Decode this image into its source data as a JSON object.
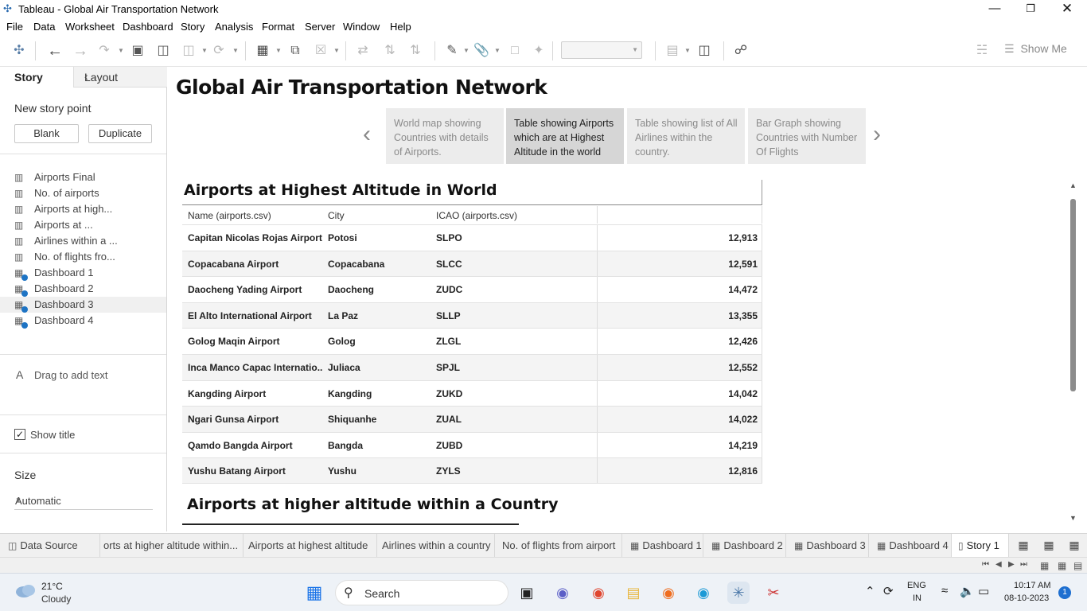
{
  "window": {
    "title": "Tableau - Global Air Transportation Network"
  },
  "menu": [
    "File",
    "Data",
    "Worksheet",
    "Dashboard",
    "Story",
    "Analysis",
    "Format",
    "Server",
    "Window",
    "Help"
  ],
  "toolbar": {
    "show_me": "Show Me"
  },
  "left_pane": {
    "tabs": {
      "story": "Story",
      "layout": "Layout"
    },
    "new_story_point": "New story point",
    "blank_button": "Blank",
    "duplicate_button": "Duplicate",
    "sheets": [
      {
        "label": "Airports Final",
        "type": "worksheet"
      },
      {
        "label": "No. of airports",
        "type": "worksheet"
      },
      {
        "label": "Airports at high...",
        "type": "worksheet"
      },
      {
        "label": "Airports at ...",
        "type": "worksheet"
      },
      {
        "label": "Airlines within a ...",
        "type": "worksheet"
      },
      {
        "label": "No. of flights fro...",
        "type": "worksheet"
      },
      {
        "label": "Dashboard 1",
        "type": "dashboard"
      },
      {
        "label": "Dashboard 2",
        "type": "dashboard"
      },
      {
        "label": "Dashboard 3",
        "type": "dashboard"
      },
      {
        "label": "Dashboard 4",
        "type": "dashboard"
      }
    ],
    "drag_to_add_text": "Drag to add text",
    "show_title": "Show title",
    "show_title_checked": true,
    "size_label": "Size",
    "size_value": "Automatic"
  },
  "story": {
    "title": "Global Air Transportation Network",
    "points": [
      "World map showing Countries with details of Airports.",
      "Table showing Airports which are at Highest Altitude in the world",
      "Table showing list of All Airlines within the country.",
      "Bar Graph showing Countries with Number Of Flights"
    ],
    "active_point": 1
  },
  "viz": {
    "title": "Airports at Highest Altitude in World",
    "columns": [
      "Name (airports.csv)",
      "City",
      "ICAO (airports.csv)"
    ],
    "rows": [
      {
        "name": "Capitan Nicolas Rojas Airport",
        "city": "Potosi",
        "icao": "SLPO",
        "altitude": "12,913"
      },
      {
        "name": "Copacabana Airport",
        "city": "Copacabana",
        "icao": "SLCC",
        "altitude": "12,591"
      },
      {
        "name": "Daocheng Yading Airport",
        "city": "Daocheng",
        "icao": "ZUDC",
        "altitude": "14,472"
      },
      {
        "name": "El Alto International Airport",
        "city": "La Paz",
        "icao": "SLLP",
        "altitude": "13,355"
      },
      {
        "name": "Golog Maqin Airport",
        "city": "Golog",
        "icao": "ZLGL",
        "altitude": "12,426"
      },
      {
        "name": "Inca Manco Capac Internatio..",
        "city": "Juliaca",
        "icao": "SPJL",
        "altitude": "12,552"
      },
      {
        "name": "Kangding Airport",
        "city": "Kangding",
        "icao": "ZUKD",
        "altitude": "14,042"
      },
      {
        "name": "Ngari Gunsa Airport",
        "city": "Shiquanhe",
        "icao": "ZUAL",
        "altitude": "14,022"
      },
      {
        "name": "Qamdo Bangda Airport",
        "city": "Bangda",
        "icao": "ZUBD",
        "altitude": "14,219"
      },
      {
        "name": "Yushu Batang Airport",
        "city": "Yushu",
        "icao": "ZYLS",
        "altitude": "12,816"
      }
    ],
    "second_title": "Airports at higher altitude within a Country"
  },
  "sheet_tabs": [
    {
      "label": "Data Source",
      "icon": "database-icon"
    },
    {
      "label": "orts at higher altitude within...",
      "icon": ""
    },
    {
      "label": "Airports at highest altitude",
      "icon": ""
    },
    {
      "label": "Airlines within a country",
      "icon": ""
    },
    {
      "label": "No. of flights from airport",
      "icon": ""
    },
    {
      "label": "Dashboard 1",
      "icon": "dashboard-icon"
    },
    {
      "label": "Dashboard 2",
      "icon": "dashboard-icon"
    },
    {
      "label": "Dashboard 3",
      "icon": "dashboard-icon"
    },
    {
      "label": "Dashboard 4",
      "icon": "dashboard-icon"
    },
    {
      "label": "Story 1",
      "icon": "story-icon"
    }
  ],
  "taskbar": {
    "weather_temp": "21°C",
    "weather_cond": "Cloudy",
    "search": "Search",
    "lang1": "ENG",
    "lang2": "IN",
    "time": "10:17 AM",
    "date": "08-10-2023",
    "notifications": "1"
  }
}
